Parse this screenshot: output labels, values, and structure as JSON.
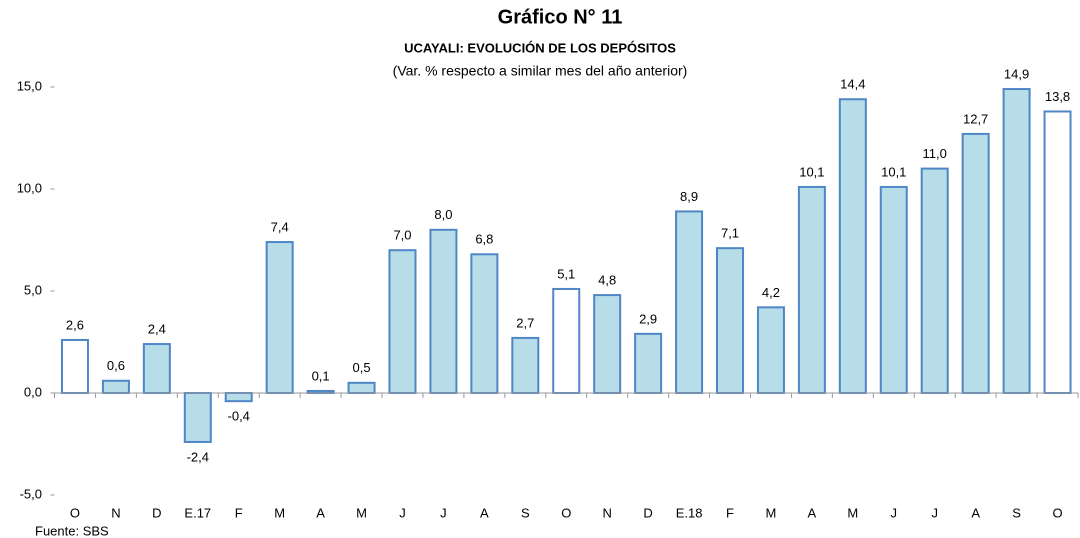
{
  "chart_data": {
    "type": "bar",
    "title": "Gráfico N° 11",
    "subtitle": "UCAYALI: EVOLUCIÓN DE LOS DEPÓSITOS",
    "subtitle2": "(Var. % respecto a similar mes del año anterior)",
    "source": "Fuente: SBS",
    "categories": [
      "O",
      "N",
      "D",
      "E.17",
      "F",
      "M",
      "A",
      "M",
      "J",
      "J",
      "A",
      "S",
      "O",
      "N",
      "D",
      "E.18",
      "F",
      "M",
      "A",
      "M",
      "J",
      "J",
      "A",
      "S",
      "O"
    ],
    "values": [
      2.6,
      0.6,
      2.4,
      -2.4,
      -0.4,
      7.4,
      0.1,
      0.5,
      7.0,
      8.0,
      6.8,
      2.7,
      5.1,
      4.8,
      2.9,
      8.9,
      7.1,
      4.2,
      10.1,
      14.4,
      10.1,
      11.0,
      12.7,
      14.9,
      13.8
    ],
    "value_labels": [
      "2,6",
      "0,6",
      "2,4",
      "-2,4",
      "-0,4",
      "7,4",
      "0,1",
      "0,5",
      "7,0",
      "8,0",
      "6,8",
      "2,7",
      "5,1",
      "4,8",
      "2,9",
      "8,9",
      "7,1",
      "4,2",
      "10,1",
      "14,4",
      "10,1",
      "11,0",
      "12,7",
      "14,9",
      "13,8"
    ],
    "colors": [
      "#ffffff",
      "#b7dde8",
      "#b7dde8",
      "#b7dde8",
      "#b7dde8",
      "#b7dde8",
      "#b7dde8",
      "#b7dde8",
      "#b7dde8",
      "#b7dde8",
      "#b7dde8",
      "#b7dde8",
      "#ffffff",
      "#b7dde8",
      "#b7dde8",
      "#b7dde8",
      "#b7dde8",
      "#b7dde8",
      "#b7dde8",
      "#b7dde8",
      "#b7dde8",
      "#b7dde8",
      "#b7dde8",
      "#b7dde8",
      "#ffffff"
    ],
    "edge_color": "#4f86c6",
    "ylim": [
      -5,
      15
    ],
    "yticks": [
      {
        "value": -5,
        "label": "-5,0"
      },
      {
        "value": 0,
        "label": "0,0"
      },
      {
        "value": 5,
        "label": "5,0"
      },
      {
        "value": 10,
        "label": "10,0"
      },
      {
        "value": 15,
        "label": "15,0"
      }
    ],
    "grid": false
  }
}
